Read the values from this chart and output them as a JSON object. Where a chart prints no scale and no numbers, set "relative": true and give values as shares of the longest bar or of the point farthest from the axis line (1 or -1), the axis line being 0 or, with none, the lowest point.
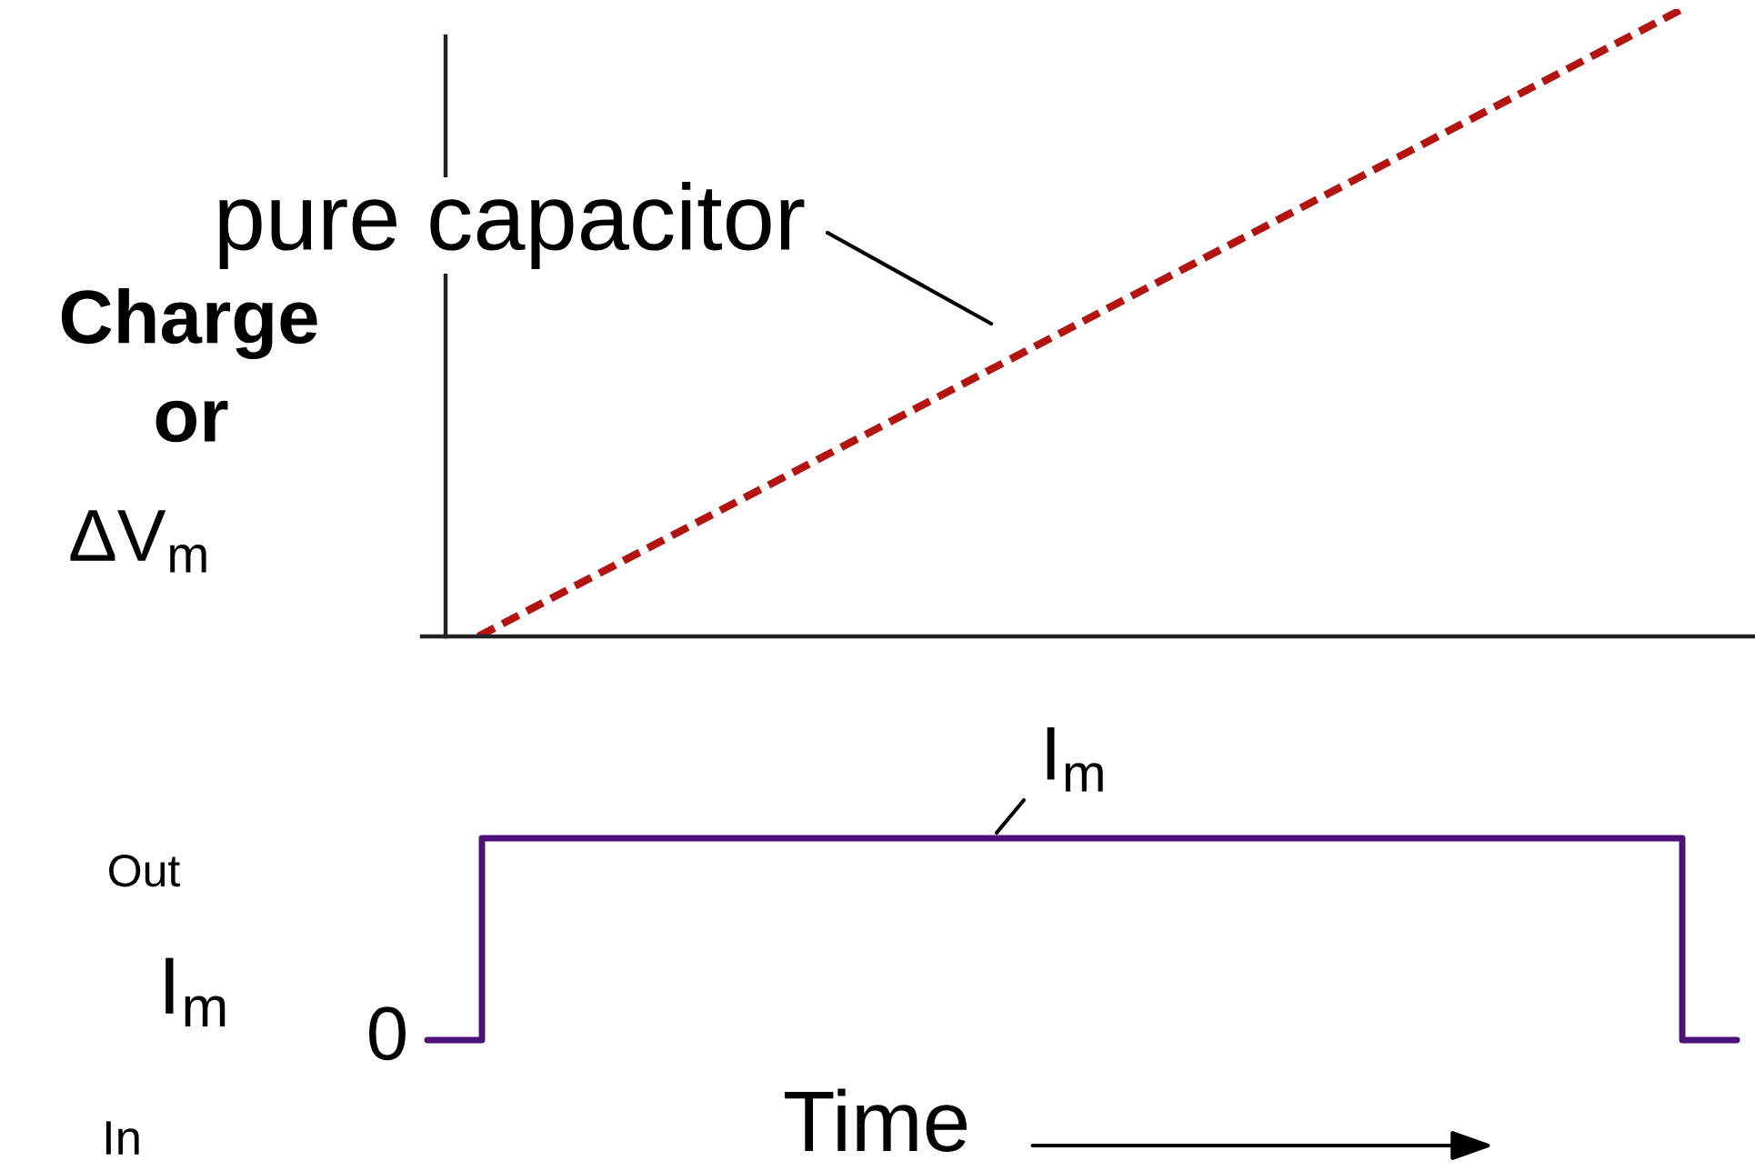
{
  "chart_data": [
    {
      "type": "line",
      "relative": true,
      "line_style": "dashed",
      "categories": [
        null,
        null
      ],
      "series": [
        {
          "color": "#b3140f",
          "values": [
            0,
            1
          ]
        }
      ],
      "ylabel": "Charge\nor\nΔV$_{m}$",
      "annotations": [
        "pure capacitor"
      ]
    },
    {
      "type": "step",
      "relative": true,
      "line_style": "solid",
      "categories": [
        null,
        null,
        null,
        null,
        null,
        null,
        null,
        null,
        null,
        null,
        null,
        null,
        null,
        null,
        null,
        null,
        null,
        null,
        null,
        null,
        null,
        null,
        null,
        null,
        null
      ],
      "series": [
        {
          "color": "#4e1177",
          "values": [
            0,
            1,
            1,
            1,
            1,
            1,
            1,
            1,
            1,
            1,
            1,
            1,
            1,
            1,
            1,
            1,
            1,
            1,
            1,
            1,
            1,
            1,
            1,
            0,
            0
          ]
        }
      ],
      "ylabel": "I$_{m}$",
      "xlabel": "Time",
      "annotations": [
        "I$_{m}$",
        "0",
        "Out",
        "In"
      ]
    }
  ]
}
